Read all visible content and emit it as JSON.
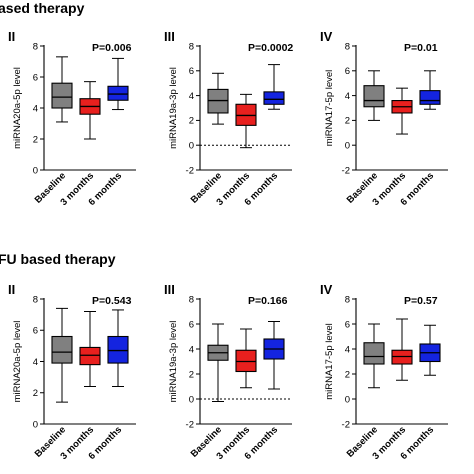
{
  "sections": [
    {
      "title": "ased therapy"
    },
    {
      "title": "FU based therapy"
    }
  ],
  "colors": {
    "Baseline": "#808080",
    "3 months": "#e8201e",
    "6 months": "#1424e0"
  },
  "chart_data": [
    {
      "type": "box",
      "section": 0,
      "panel_label": "II",
      "p_value": "P=0.006",
      "ylabel": "miRNA20a-5p level",
      "ylim": [
        0,
        8
      ],
      "yticks": [
        0,
        2,
        4,
        6,
        8
      ],
      "categories": [
        "Baseline",
        "3 months",
        "6 months"
      ],
      "boxes": [
        {
          "min": 3.1,
          "q1": 4.0,
          "median": 4.7,
          "q3": 5.6,
          "max": 7.3
        },
        {
          "min": 2.0,
          "q1": 3.6,
          "median": 4.1,
          "q3": 4.6,
          "max": 5.7
        },
        {
          "min": 3.9,
          "q1": 4.5,
          "median": 4.9,
          "q3": 5.4,
          "max": 7.2
        }
      ]
    },
    {
      "type": "box",
      "section": 0,
      "panel_label": "III",
      "p_value": "P=0.0002",
      "ylabel": "miRNA19a-3p level",
      "ylim": [
        -2,
        8
      ],
      "yticks": [
        -2,
        0,
        2,
        4,
        6,
        8
      ],
      "zero_line": true,
      "categories": [
        "Baseline",
        "3 months",
        "6 months"
      ],
      "boxes": [
        {
          "min": 1.7,
          "q1": 2.6,
          "median": 3.6,
          "q3": 4.5,
          "max": 5.8
        },
        {
          "min": -0.2,
          "q1": 1.6,
          "median": 2.4,
          "q3": 3.3,
          "max": 4.1
        },
        {
          "min": 2.9,
          "q1": 3.3,
          "median": 3.7,
          "q3": 4.3,
          "max": 6.5
        }
      ]
    },
    {
      "type": "box",
      "section": 0,
      "panel_label": "IV",
      "p_value": "P=0.01",
      "ylabel": "miRNA17-5p level",
      "ylim": [
        -2,
        8
      ],
      "yticks": [
        -2,
        0,
        2,
        4,
        6,
        8
      ],
      "categories": [
        "Baseline",
        "3 months",
        "6 months"
      ],
      "boxes": [
        {
          "min": 2.0,
          "q1": 3.1,
          "median": 3.6,
          "q3": 4.8,
          "max": 6.0
        },
        {
          "min": 0.9,
          "q1": 2.6,
          "median": 3.1,
          "q3": 3.6,
          "max": 4.6
        },
        {
          "min": 2.9,
          "q1": 3.3,
          "median": 3.6,
          "q3": 4.4,
          "max": 6.0
        }
      ]
    },
    {
      "type": "box",
      "section": 1,
      "panel_label": "II",
      "p_value": "P=0.543",
      "ylabel": "miRNA20a-5p level",
      "ylim": [
        0,
        8
      ],
      "yticks": [
        0,
        2,
        4,
        6,
        8
      ],
      "categories": [
        "Baseline",
        "3 months",
        "6 months"
      ],
      "boxes": [
        {
          "min": 1.4,
          "q1": 3.9,
          "median": 4.6,
          "q3": 5.6,
          "max": 7.4
        },
        {
          "min": 2.4,
          "q1": 3.8,
          "median": 4.4,
          "q3": 4.9,
          "max": 7.2
        },
        {
          "min": 2.4,
          "q1": 3.9,
          "median": 4.7,
          "q3": 5.6,
          "max": 7.3
        }
      ]
    },
    {
      "type": "box",
      "section": 1,
      "panel_label": "III",
      "p_value": "P=0.166",
      "ylabel": "miRNA19a-3p level",
      "ylim": [
        -2,
        8
      ],
      "yticks": [
        -2,
        0,
        2,
        4,
        6,
        8
      ],
      "zero_line": true,
      "categories": [
        "Baseline",
        "3 months",
        "6 months"
      ],
      "boxes": [
        {
          "min": -0.2,
          "q1": 3.1,
          "median": 3.7,
          "q3": 4.3,
          "max": 6.0
        },
        {
          "min": 0.9,
          "q1": 2.2,
          "median": 3.0,
          "q3": 3.9,
          "max": 5.6
        },
        {
          "min": 0.8,
          "q1": 3.2,
          "median": 4.0,
          "q3": 4.8,
          "max": 6.2
        }
      ]
    },
    {
      "type": "box",
      "section": 1,
      "panel_label": "IV",
      "p_value": "P=0.57",
      "ylabel": "miRNA17-5p level",
      "ylim": [
        -2,
        8
      ],
      "yticks": [
        -2,
        0,
        2,
        4,
        6,
        8
      ],
      "categories": [
        "Baseline",
        "3 months",
        "6 months"
      ],
      "boxes": [
        {
          "min": 0.9,
          "q1": 2.8,
          "median": 3.4,
          "q3": 4.5,
          "max": 6.0
        },
        {
          "min": 1.5,
          "q1": 2.8,
          "median": 3.4,
          "q3": 3.9,
          "max": 6.4
        },
        {
          "min": 1.9,
          "q1": 3.0,
          "median": 3.7,
          "q3": 4.4,
          "max": 5.9
        }
      ]
    }
  ]
}
